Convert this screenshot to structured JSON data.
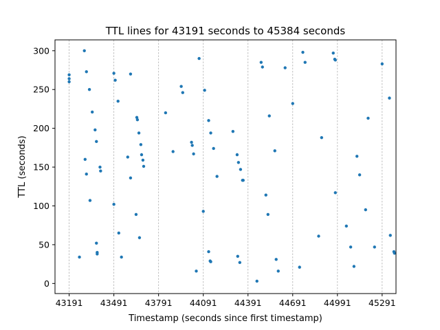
{
  "chart_data": {
    "type": "scatter",
    "title": "TTL lines for 43191 seconds to 45384 seconds",
    "xlabel": "Timestamp (seconds since first timestamp)",
    "ylabel": "TTL (seconds)",
    "xlim": [
      43096,
      45384
    ],
    "ylim": [
      -13,
      314
    ],
    "xticks": [
      43191,
      43491,
      43791,
      44091,
      44391,
      44691,
      44991,
      45291
    ],
    "yticks": [
      0,
      50,
      100,
      150,
      200,
      250,
      300
    ],
    "vertical_lines": [
      43191,
      43491,
      43791,
      44091,
      44391,
      44691,
      44991,
      45291
    ],
    "grid": false,
    "marker_color": "#1f77b4",
    "points": [
      [
        43191,
        269
      ],
      [
        43191,
        264
      ],
      [
        43191,
        260
      ],
      [
        43260,
        34
      ],
      [
        43293,
        300
      ],
      [
        43298,
        160
      ],
      [
        43307,
        141
      ],
      [
        43307,
        273
      ],
      [
        43327,
        250
      ],
      [
        43331,
        107
      ],
      [
        43346,
        221
      ],
      [
        43365,
        198
      ],
      [
        43374,
        52
      ],
      [
        43374,
        183
      ],
      [
        43379,
        40
      ],
      [
        43379,
        38
      ],
      [
        43398,
        150
      ],
      [
        43402,
        145
      ],
      [
        43491,
        102
      ],
      [
        43491,
        271
      ],
      [
        43500,
        262
      ],
      [
        43519,
        235
      ],
      [
        43524,
        65
      ],
      [
        43542,
        34
      ],
      [
        43584,
        163
      ],
      [
        43603,
        136
      ],
      [
        43603,
        270
      ],
      [
        43640,
        89
      ],
      [
        43645,
        214
      ],
      [
        43649,
        211
      ],
      [
        43659,
        194
      ],
      [
        43663,
        59
      ],
      [
        43672,
        179
      ],
      [
        43677,
        166
      ],
      [
        43686,
        159
      ],
      [
        43691,
        151
      ],
      [
        43838,
        220
      ],
      [
        43888,
        170
      ],
      [
        43943,
        254
      ],
      [
        43953,
        246
      ],
      [
        44012,
        182
      ],
      [
        44017,
        178
      ],
      [
        44026,
        167
      ],
      [
        44044,
        16
      ],
      [
        44063,
        290
      ],
      [
        44091,
        93
      ],
      [
        44100,
        249
      ],
      [
        44127,
        210
      ],
      [
        44127,
        41
      ],
      [
        44137,
        29
      ],
      [
        44141,
        194
      ],
      [
        44141,
        28
      ],
      [
        44160,
        174
      ],
      [
        44183,
        138
      ],
      [
        44290,
        196
      ],
      [
        44318,
        166
      ],
      [
        44322,
        35
      ],
      [
        44327,
        156
      ],
      [
        44336,
        27
      ],
      [
        44341,
        147
      ],
      [
        44354,
        133
      ],
      [
        44359,
        133
      ],
      [
        44451,
        3
      ],
      [
        44479,
        285
      ],
      [
        44488,
        279
      ],
      [
        44511,
        114
      ],
      [
        44525,
        89
      ],
      [
        44534,
        216
      ],
      [
        44571,
        171
      ],
      [
        44580,
        31
      ],
      [
        44594,
        16
      ],
      [
        44640,
        278
      ],
      [
        44691,
        232
      ],
      [
        44737,
        21
      ],
      [
        44759,
        298
      ],
      [
        44774,
        285
      ],
      [
        44865,
        61
      ],
      [
        44885,
        188
      ],
      [
        44963,
        297
      ],
      [
        44973,
        289
      ],
      [
        44977,
        288
      ],
      [
        44977,
        117
      ],
      [
        45051,
        74
      ],
      [
        45080,
        47
      ],
      [
        45102,
        22
      ],
      [
        45122,
        164
      ],
      [
        45140,
        140
      ],
      [
        45180,
        95
      ],
      [
        45197,
        213
      ],
      [
        45240,
        47
      ],
      [
        45291,
        283
      ],
      [
        45340,
        239
      ],
      [
        45346,
        62
      ],
      [
        45370,
        41
      ],
      [
        45374,
        39
      ]
    ]
  }
}
